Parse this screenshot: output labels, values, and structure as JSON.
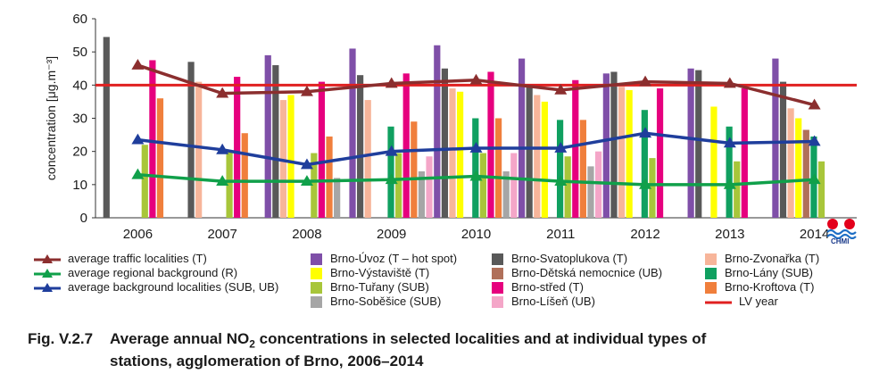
{
  "chart_data": {
    "type": "bar",
    "ylabel": "concentration [μg.m⁻³]",
    "ylim": [
      0,
      60
    ],
    "yticks": [
      0,
      10,
      20,
      30,
      40,
      50,
      60
    ],
    "categories": [
      "2006",
      "2007",
      "2008",
      "2009",
      "2010",
      "2011",
      "2012",
      "2013",
      "2014"
    ],
    "series": [
      {
        "name": "Brno-Úvoz (T – hot spot)",
        "color": "#7f4fa8",
        "values": [
          null,
          null,
          49,
          51,
          52,
          48,
          43.5,
          45,
          48
        ]
      },
      {
        "name": "Brno-Svatoplukova (T)",
        "color": "#595959",
        "values": [
          54.5,
          47,
          46,
          43,
          45,
          40,
          44,
          44.5,
          41
        ]
      },
      {
        "name": "Brno-Zvonařka (T)",
        "color": "#f7b59a",
        "values": [
          null,
          41,
          35.5,
          35.5,
          39,
          37,
          39.5,
          null,
          33
        ]
      },
      {
        "name": "Brno-Výstaviště (T)",
        "color": "#ffff00",
        "values": [
          null,
          null,
          37,
          null,
          38,
          35,
          38.5,
          33.5,
          30
        ]
      },
      {
        "name": "Brno-Dětská nemocnice (UB)",
        "color": "#b0705a",
        "values": [
          null,
          null,
          null,
          null,
          null,
          null,
          null,
          null,
          26.5
        ]
      },
      {
        "name": "Brno-Lány (SUB)",
        "color": "#10a060",
        "values": [
          null,
          null,
          null,
          27.5,
          30,
          29.5,
          32.5,
          27.5,
          24.5
        ]
      },
      {
        "name": "Brno-Tuřany (SUB)",
        "color": "#a8c63a",
        "values": [
          22,
          20,
          19.5,
          19.5,
          19.5,
          18.5,
          18,
          17,
          17
        ]
      },
      {
        "name": "Brno-střed (T)",
        "color": "#e6007e",
        "values": [
          47.5,
          42.5,
          41,
          43.5,
          44,
          41.5,
          39,
          39,
          null
        ]
      },
      {
        "name": "Brno-Kroftova (T)",
        "color": "#f07f3c",
        "values": [
          36,
          25.5,
          24.5,
          29,
          30,
          29.5,
          null,
          null,
          null
        ]
      },
      {
        "name": "Brno-Soběšice (SUB)",
        "color": "#a6a6a6",
        "values": [
          null,
          null,
          12,
          14,
          14,
          15.5,
          null,
          null,
          null
        ]
      },
      {
        "name": "Brno-Líšeň (UB)",
        "color": "#f4a6c8",
        "values": [
          null,
          null,
          null,
          18.5,
          19.5,
          20,
          null,
          null,
          null
        ]
      }
    ],
    "lines": [
      {
        "name": "average traffic localities (T)",
        "color": "#8b2e2e",
        "values": [
          46,
          37.5,
          38,
          40.5,
          41.5,
          38.5,
          41,
          40.5,
          34
        ]
      },
      {
        "name": "average regional background (R)",
        "color": "#10a04a",
        "values": [
          13,
          11,
          11,
          11.5,
          12.5,
          11,
          10,
          10,
          11.5
        ]
      },
      {
        "name": "average background localities (SUB, UB)",
        "color": "#1f3e9c",
        "values": [
          23.5,
          20.5,
          16,
          20,
          21,
          21,
          25.5,
          22.5,
          23
        ]
      }
    ],
    "limit": {
      "name": "LV year",
      "color": "#e02020",
      "value": 40
    }
  },
  "caption": {
    "number": "Fig. V.2.7",
    "line1_pre": "Average annual NO",
    "line1_sub": "2",
    "line1_post": " concentrations in selected localities and at individual types of",
    "line2": "stations, agglomeration of Brno, 2006–2014"
  },
  "logo": {
    "text": "CHMI"
  }
}
